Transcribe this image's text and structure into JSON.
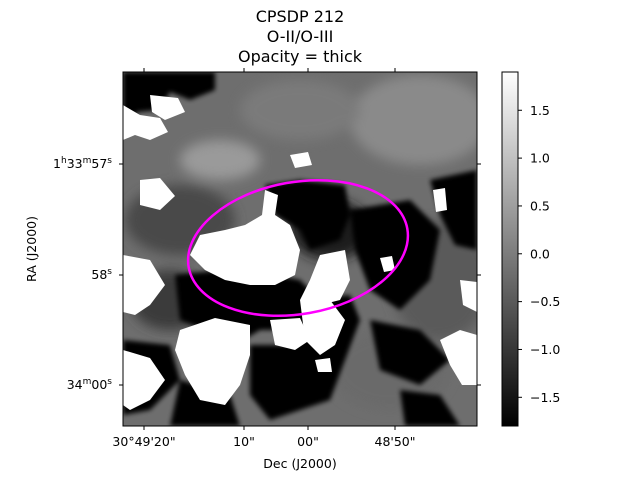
{
  "figure": {
    "title_lines": [
      "CPSDP 212",
      "O-II/O-III",
      "Opacity = thick"
    ],
    "x_axis": {
      "label": "Dec (J2000)",
      "tick_labels": [
        "30°49'20\"",
        "10\"",
        "00\"",
        "48'50\""
      ]
    },
    "y_axis": {
      "label": "RA (J2000)",
      "tick_labels": [
        {
          "main": "1",
          "sup1": "h",
          "mid": "33",
          "sup2": "m",
          "end": "57",
          "sup3": "s"
        },
        {
          "main": "58",
          "sup1": "s"
        },
        {
          "main": "34",
          "sup1": "m",
          "mid": "00",
          "sup2": "s"
        }
      ]
    },
    "colorbar": {
      "colormap": "gray",
      "vmin": -1.8,
      "vmax": 1.9,
      "tick_labels": [
        "1.5",
        "1.0",
        "0.5",
        "0.0",
        "−0.5",
        "−1.0",
        "−1.5"
      ]
    },
    "overlay": {
      "shape": "ellipse",
      "color": "#ff00ff"
    }
  }
}
